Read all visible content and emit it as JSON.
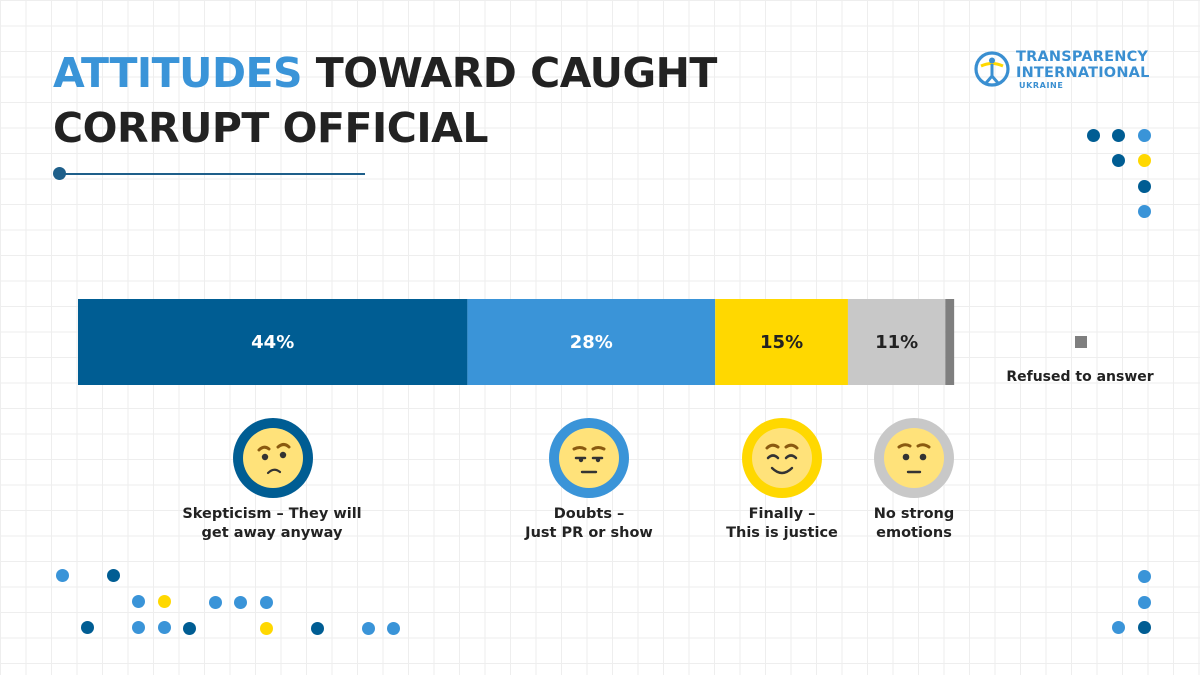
{
  "header": {
    "title_highlight": "ATTITUDES",
    "title_line1_rest": " TOWARD CAUGHT",
    "title_line2": "CORRUPT OFFICIAL"
  },
  "logo": {
    "line1": "TRANSPARENCY",
    "line2": "INTERNATIONAL",
    "line3": "UKRAINE"
  },
  "colors": {
    "accent": "#3a94d8",
    "dark_blue": "#005d93",
    "light_blue": "#3a94d8",
    "yellow": "#ffd800",
    "gray": "#c8c8c8",
    "dark_gray": "#7f7f7f",
    "text": "#222222"
  },
  "chart_data": {
    "type": "bar",
    "orientation": "horizontal-stacked",
    "unit": "%",
    "series": [
      {
        "name": "Skepticism – They will get away anyway",
        "value": 44,
        "label": "44%",
        "color": "#005d93",
        "label_color": "#ffffff"
      },
      {
        "name": "Doubts – Just PR or show",
        "value": 28,
        "label": "28%",
        "color": "#3a94d8",
        "label_color": "#ffffff"
      },
      {
        "name": "Finally – This is justice",
        "value": 15,
        "label": "15%",
        "color": "#ffd800",
        "label_color": "#222222"
      },
      {
        "name": "No strong emotions",
        "value": 11,
        "label": "11%",
        "color": "#c8c8c8",
        "label_color": "#222222"
      },
      {
        "name": "Refused to answer",
        "value": 1,
        "label": "",
        "color": "#7f7f7f",
        "label_color": "#222222"
      }
    ],
    "legend": {
      "label": "Refused to answer",
      "placement": "right"
    }
  },
  "captions": [
    {
      "line1": "Skepticism – They will",
      "line2": "get away anyway",
      "icon": "skeptical-face-icon"
    },
    {
      "line1": "Doubts –",
      "line2": "Just PR or show",
      "icon": "doubtful-face-icon"
    },
    {
      "line1": "Finally –",
      "line2": "This is justice",
      "icon": "smiling-face-icon"
    },
    {
      "line1": "No strong",
      "line2": "emotions",
      "icon": "neutral-face-icon"
    }
  ]
}
